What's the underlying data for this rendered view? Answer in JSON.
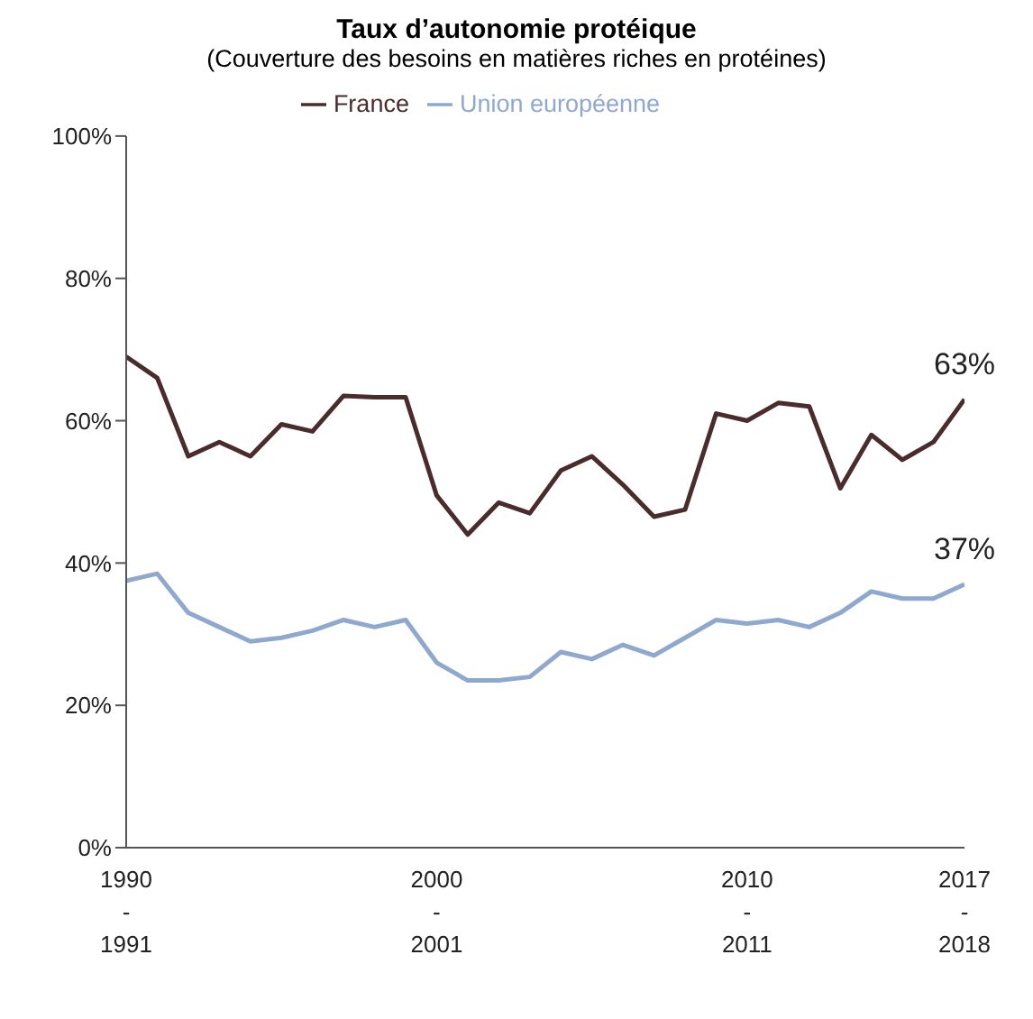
{
  "chart_data": {
    "type": "line",
    "title": "Taux d’autonomie protéique",
    "subtitle": "(Couverture des besoins en matières riches en protéines)",
    "categories": [
      "1990\n-\n1991",
      null,
      null,
      null,
      null,
      null,
      null,
      null,
      null,
      null,
      "2000\n-\n2001",
      null,
      null,
      null,
      null,
      null,
      null,
      null,
      null,
      null,
      "2010\n-\n2011",
      null,
      null,
      null,
      null,
      null,
      null,
      "2017\n-\n2018"
    ],
    "series": [
      {
        "name": "France",
        "color": "#4a2c2c",
        "values": [
          69,
          66,
          55,
          57,
          55,
          59.5,
          58.5,
          63.5,
          63.3,
          63.3,
          49.5,
          44,
          48.5,
          47,
          53,
          55,
          51,
          46.5,
          47.5,
          61,
          60,
          62.5,
          62,
          50.5,
          58,
          54.5,
          57,
          63
        ]
      },
      {
        "name": "Union européenne",
        "color": "#8fa8d0",
        "values": [
          37.5,
          38.5,
          33,
          31,
          29,
          29.5,
          30.5,
          32,
          31,
          32,
          26,
          23.5,
          23.5,
          24,
          27.5,
          26.5,
          28.5,
          27,
          29.5,
          32,
          31.5,
          32,
          31,
          33,
          36,
          35,
          35,
          37
        ]
      }
    ],
    "ylim": [
      0,
      100
    ],
    "yticks": [
      {
        "value": 0,
        "label": "0%"
      },
      {
        "value": 20,
        "label": "20%"
      },
      {
        "value": 40,
        "label": "40%"
      },
      {
        "value": 60,
        "label": "60%"
      },
      {
        "value": 80,
        "label": "80%"
      },
      {
        "value": 100,
        "label": "100%"
      }
    ],
    "annotations": [
      {
        "text": "63%",
        "x": "2017\n-\n2018",
        "y": 63
      },
      {
        "text": "37%",
        "x": "2017\n-\n2018",
        "y": 37
      }
    ],
    "legend": "top",
    "grid": false,
    "marker": "none",
    "line_style": "solid"
  }
}
